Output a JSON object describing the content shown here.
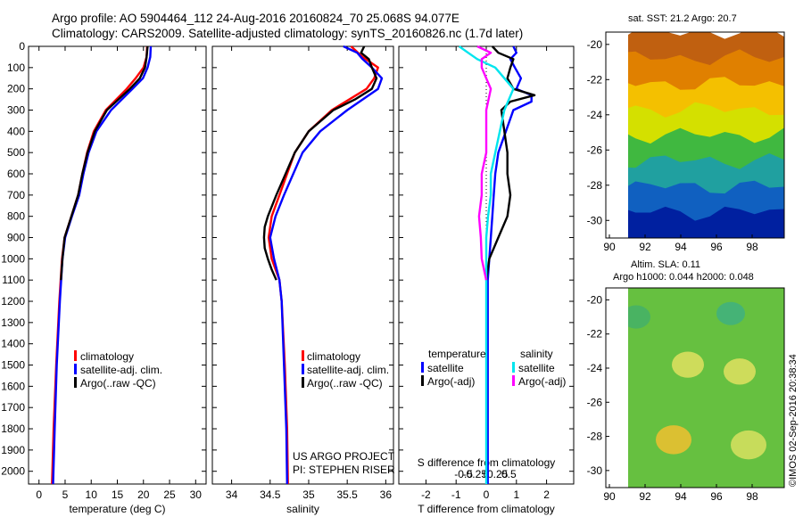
{
  "header": {
    "title_line1": "Argo profile: AO 5904464_112 24-Aug-2016 20160824_70 25.068S 94.077E",
    "title_line2": "Climatology: CARS2009. Satellite-adjusted climatology: synTS_20160826.nc (1.7d later)"
  },
  "side_panels": {
    "sst_label": "sat. SST: 21.2 Argo: 20.7",
    "sla_label1": "Altim. SLA: 0.11",
    "sla_label2": "Argo h1000: 0.044 h2000: 0.048",
    "timestamp": "©IMOS 02-Sep-2016 20:38:34"
  },
  "colors": {
    "climatology": "#ff0000",
    "satellite": "#0000ff",
    "argo": "#000000",
    "sat_salinity": "#00e5ee",
    "argo_salinity": "#ff00ff"
  },
  "chart_data": [
    {
      "type": "line",
      "panel": "temperature",
      "xlabel": "temperature (deg C)",
      "xlim": [
        -2,
        32
      ],
      "xticks": [
        0,
        5,
        10,
        15,
        20,
        25,
        30
      ],
      "ylim": [
        2060,
        0
      ],
      "yticks": [
        0,
        100,
        200,
        300,
        400,
        500,
        600,
        700,
        800,
        900,
        1000,
        1100,
        1200,
        1300,
        1400,
        1500,
        1600,
        1700,
        1800,
        1900,
        2000
      ],
      "legend": [
        "climatology",
        "satellite-adj. clim.",
        "Argo(..raw -QC)"
      ],
      "series": [
        {
          "name": "climatology",
          "color": "#ff0000",
          "depth": [
            0,
            50,
            100,
            150,
            200,
            300,
            400,
            500,
            600,
            700,
            800,
            900,
            1000,
            1200,
            1500,
            1800,
            2060
          ],
          "values": [
            20.7,
            20.6,
            20.0,
            18.5,
            16.8,
            12.8,
            10.5,
            9.2,
            8.3,
            7.5,
            6.2,
            4.9,
            4.4,
            3.9,
            3.3,
            2.8,
            2.5
          ]
        },
        {
          "name": "satellite-adj. clim.",
          "color": "#0000ff",
          "depth": [
            0,
            50,
            100,
            150,
            200,
            300,
            400,
            500,
            600,
            700,
            800,
            900,
            1000,
            1200,
            1500,
            1800,
            2060
          ],
          "values": [
            21.4,
            21.3,
            20.8,
            19.9,
            17.9,
            13.8,
            11.0,
            9.5,
            8.5,
            7.7,
            6.3,
            5.0,
            4.5,
            4.0,
            3.4,
            3.0,
            2.7
          ]
        },
        {
          "name": "Argo(..raw -QC)",
          "color": "#000000",
          "depth": [
            0,
            50,
            100,
            150,
            200,
            300,
            400,
            500,
            600,
            700,
            800,
            900,
            1000,
            1100
          ],
          "values": [
            20.8,
            20.6,
            20.3,
            19.3,
            17.4,
            13.0,
            10.7,
            9.3,
            8.3,
            7.5,
            6.2,
            4.9,
            4.5,
            4.2
          ]
        }
      ]
    },
    {
      "type": "line",
      "panel": "salinity",
      "xlabel": "salinity",
      "xlim": [
        33.75,
        36.1
      ],
      "xticks": [
        34,
        34.5,
        35,
        35.5,
        36
      ],
      "xtick_labels": [
        "34",
        "34.5",
        "35",
        "35.5",
        "36"
      ],
      "ylim": [
        2060,
        0
      ],
      "legend": [
        "climatology",
        "satellite-adj. clim.",
        "Argo(..raw -QC)"
      ],
      "series": [
        {
          "name": "climatology",
          "color": "#ff0000",
          "depth": [
            0,
            50,
            100,
            150,
            200,
            300,
            400,
            500,
            600,
            700,
            800,
            900,
            1000,
            1100,
            1200,
            1500,
            1800,
            2060
          ],
          "values": [
            35.55,
            35.7,
            35.9,
            35.85,
            35.75,
            35.3,
            35.0,
            34.82,
            34.72,
            34.62,
            34.52,
            34.48,
            34.52,
            34.62,
            34.65,
            34.69,
            34.72,
            34.73
          ]
        },
        {
          "name": "satellite-adj. clim.",
          "color": "#0000ff",
          "depth": [
            0,
            30,
            60,
            100,
            150,
            200,
            300,
            400,
            500,
            600,
            700,
            800,
            900,
            1000,
            1100,
            1200,
            1500,
            1800,
            2060
          ],
          "values": [
            35.45,
            35.63,
            35.7,
            35.82,
            35.95,
            35.9,
            35.5,
            35.15,
            34.92,
            34.8,
            34.68,
            34.57,
            34.5,
            34.55,
            34.62,
            34.65,
            34.68,
            34.71,
            34.72
          ]
        },
        {
          "name": "Argo(..raw -QC)",
          "color": "#000000",
          "depth": [
            0,
            30,
            60,
            100,
            150,
            200,
            250,
            300,
            400,
            500,
            600,
            700,
            800,
            850,
            900,
            950,
            1000,
            1050,
            1100
          ],
          "values": [
            35.72,
            35.68,
            35.78,
            35.82,
            35.88,
            35.82,
            35.6,
            35.32,
            35.0,
            34.82,
            34.7,
            34.58,
            34.47,
            34.43,
            34.42,
            34.43,
            34.47,
            34.52,
            34.58
          ]
        }
      ],
      "annotation": [
        "US ARGO PROJECT",
        "PI: STEPHEN RISER"
      ]
    },
    {
      "type": "line",
      "panel": "difference",
      "xlabel": "T difference from climatology",
      "xlim": [
        -2.9,
        2.9
      ],
      "xticks": [
        -2,
        -1,
        0,
        1,
        2
      ],
      "xtick_labels": [
        "-2",
        "-1",
        "0",
        "1",
        "2"
      ],
      "top_label": "S difference from climatology",
      "top_ticks": [
        -0.5,
        -0.25,
        0,
        0.25,
        0.5
      ],
      "top_tick_labels": [
        "-0.5",
        "-0.25",
        "0",
        "0.25",
        "0.5"
      ],
      "ylim": [
        2060,
        0
      ],
      "legend_groups": [
        {
          "title": "temperature",
          "items": [
            "satellite",
            "Argo(-adj)"
          ]
        },
        {
          "title": "salinity",
          "items": [
            "satellite",
            "Argo(-adj)"
          ]
        }
      ],
      "series": [
        {
          "name": "temperature satellite",
          "color": "#0000ff",
          "depth": [
            0,
            30,
            60,
            100,
            150,
            200,
            230,
            260,
            300,
            400,
            500,
            600,
            700,
            800,
            900,
            1000,
            1100,
            1300,
            1600,
            2060
          ],
          "values": [
            0.9,
            1.0,
            0.8,
            0.95,
            1.15,
            1.0,
            1.5,
            1.5,
            0.9,
            0.65,
            0.4,
            0.3,
            0.25,
            0.2,
            0.15,
            0.1,
            0.05,
            0.05,
            0.05,
            0.05
          ]
        },
        {
          "name": "temperature Argo(-adj)",
          "color": "#000000",
          "depth": [
            0,
            30,
            60,
            100,
            150,
            200,
            230,
            260,
            300,
            400,
            500,
            600,
            700,
            800,
            900,
            1000,
            1100
          ],
          "values": [
            0.2,
            0.4,
            0.9,
            0.8,
            0.7,
            0.9,
            1.6,
            0.8,
            0.5,
            0.6,
            0.7,
            0.7,
            0.8,
            0.7,
            0.4,
            0.1,
            0.0
          ]
        },
        {
          "name": "salinity satellite",
          "color": "#00e5ee",
          "depth": [
            0,
            30,
            60,
            100,
            150,
            200,
            300,
            400,
            500,
            600,
            700,
            800,
            900,
            1000,
            1100,
            1300,
            1600,
            2060
          ],
          "values": [
            -0.3,
            -0.2,
            -0.1,
            0.1,
            0.2,
            0.3,
            0.2,
            0.15,
            0.1,
            0.05,
            0.05,
            0.02,
            0.0,
            0.0,
            0.0,
            0.0,
            0.0,
            0.0
          ]
        },
        {
          "name": "salinity Argo(-adj)",
          "color": "#ff00ff",
          "depth": [
            0,
            30,
            60,
            100,
            150,
            200,
            300,
            400,
            500,
            600,
            700,
            800,
            900,
            1000,
            1100
          ],
          "values": [
            -0.1,
            0.05,
            -0.05,
            -0.05,
            0.0,
            0.05,
            0.0,
            0.0,
            0.0,
            -0.05,
            -0.05,
            -0.08,
            -0.06,
            -0.05,
            0.0
          ]
        }
      ]
    },
    {
      "type": "heatmap",
      "panel": "sst",
      "xticks": [
        90,
        92,
        94,
        96,
        98
      ],
      "yticks": [
        -20,
        -22,
        -24,
        -26,
        -28,
        -30
      ],
      "xlim": [
        89.8,
        99.8
      ],
      "ylim": [
        -31.0,
        -19.3
      ],
      "colors": [
        "#c06010",
        "#e08000",
        "#f4c000",
        "#d4e000",
        "#40b840",
        "#20a0a0",
        "#1060c0",
        "#0020a0"
      ],
      "bands_from_top": [
        0,
        1,
        2,
        3,
        4,
        5,
        6,
        7
      ]
    },
    {
      "type": "heatmap",
      "panel": "sla",
      "xticks": [
        90,
        92,
        94,
        96,
        98
      ],
      "yticks": [
        -20,
        -22,
        -24,
        -26,
        -28,
        -30
      ],
      "xlim": [
        89.8,
        99.8
      ],
      "ylim": [
        -31.0,
        -19.3
      ],
      "background": "#66c040",
      "spots": [
        {
          "lon": 94.4,
          "lat": -23.8,
          "r": 0.9,
          "color": "#e0e060"
        },
        {
          "lon": 97.3,
          "lat": -24.2,
          "r": 0.9,
          "color": "#e0e060"
        },
        {
          "lon": 93.6,
          "lat": -28.2,
          "r": 1.0,
          "color": "#f0c030"
        },
        {
          "lon": 97.8,
          "lat": -28.5,
          "r": 1.0,
          "color": "#d8e060"
        },
        {
          "lon": 91.5,
          "lat": -21.0,
          "r": 0.8,
          "color": "#44b068"
        },
        {
          "lon": 96.8,
          "lat": -20.8,
          "r": 0.8,
          "color": "#40b080"
        }
      ]
    }
  ]
}
